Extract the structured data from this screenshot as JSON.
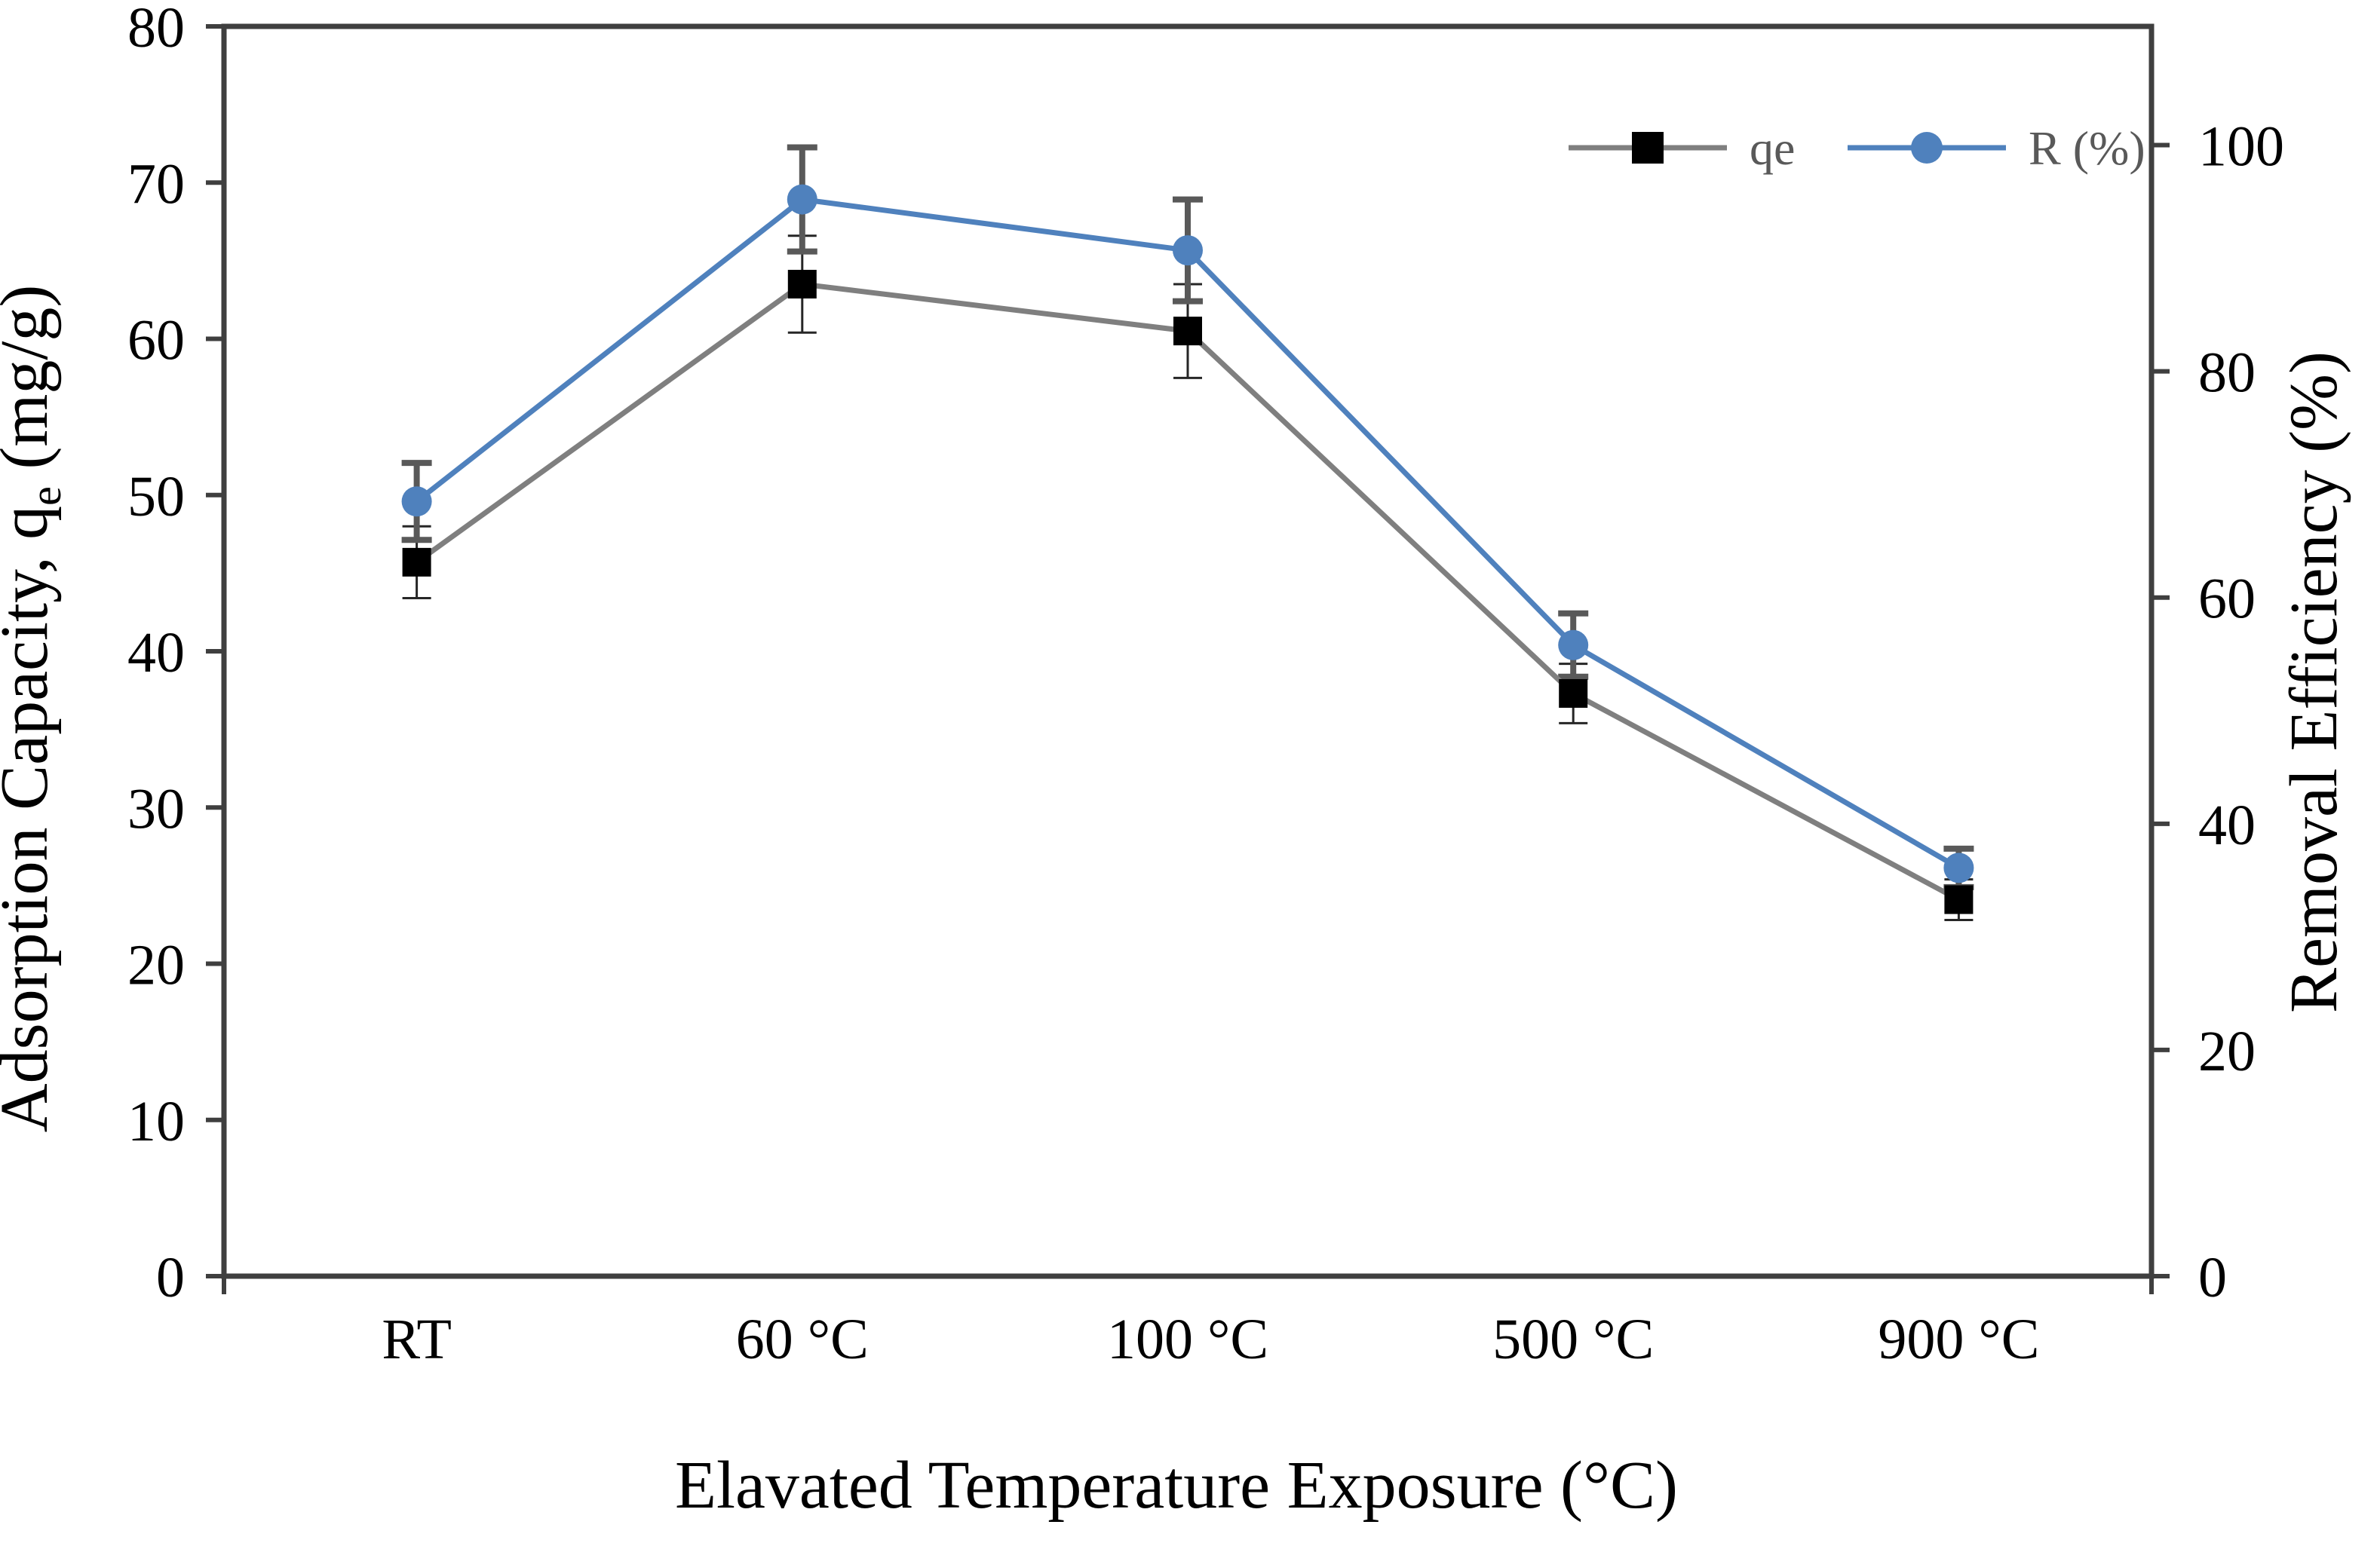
{
  "colors": {
    "background": "#FFFFFF",
    "frame": "#3F3F3F",
    "tick_text": "#000000",
    "title_text": "#000000",
    "legend_text": "#595959",
    "qe_line": "#7F7F7F",
    "qe_marker": "#000000",
    "r_line": "#4F81BD",
    "r_marker": "#4F81BD"
  },
  "chart_data": {
    "type": "line",
    "title": "",
    "categories": [
      "RT",
      "60 °C",
      "100 °C",
      "500 °C",
      "900 °C"
    ],
    "xlabel": "Elavated Temperature Exposure (°C)",
    "ylabel_left": "Adsorption Capacity, qe (mg/g)",
    "ylabel_left_parts": {
      "prefix": "Adsorption Capacity, q",
      "sub": "e",
      "suffix": " (mg/g)"
    },
    "ylabel_right": "Removal Efficiency (%)",
    "axis_left": {
      "min": 0,
      "max": 80,
      "ticks": [
        0,
        10,
        20,
        30,
        40,
        50,
        60,
        70,
        80
      ]
    },
    "axis_right": {
      "min": 0,
      "max": 110.5,
      "ticks": [
        0,
        20,
        40,
        60,
        80,
        100
      ]
    },
    "grid": false,
    "legend_position": "top-right",
    "legend": {
      "items": [
        "qe",
        "R (%)"
      ]
    },
    "series": [
      {
        "name": "qe",
        "axis": "left",
        "marker": "square",
        "line_color": "#7F7F7F",
        "marker_color": "#000000",
        "error_color": "#262626",
        "values": [
          45.7,
          63.5,
          60.5,
          37.3,
          24.1
        ],
        "errors": [
          2.3,
          3.1,
          3.0,
          1.9,
          1.3
        ]
      },
      {
        "name": "R (%)",
        "axis": "right",
        "marker": "circle",
        "line_color": "#4F81BD",
        "marker_color": "#4F81BD",
        "error_color": "#595959",
        "values": [
          68.5,
          95.2,
          90.7,
          55.8,
          36.1
        ],
        "errors": [
          3.4,
          4.6,
          4.5,
          2.8,
          1.7
        ]
      }
    ]
  }
}
